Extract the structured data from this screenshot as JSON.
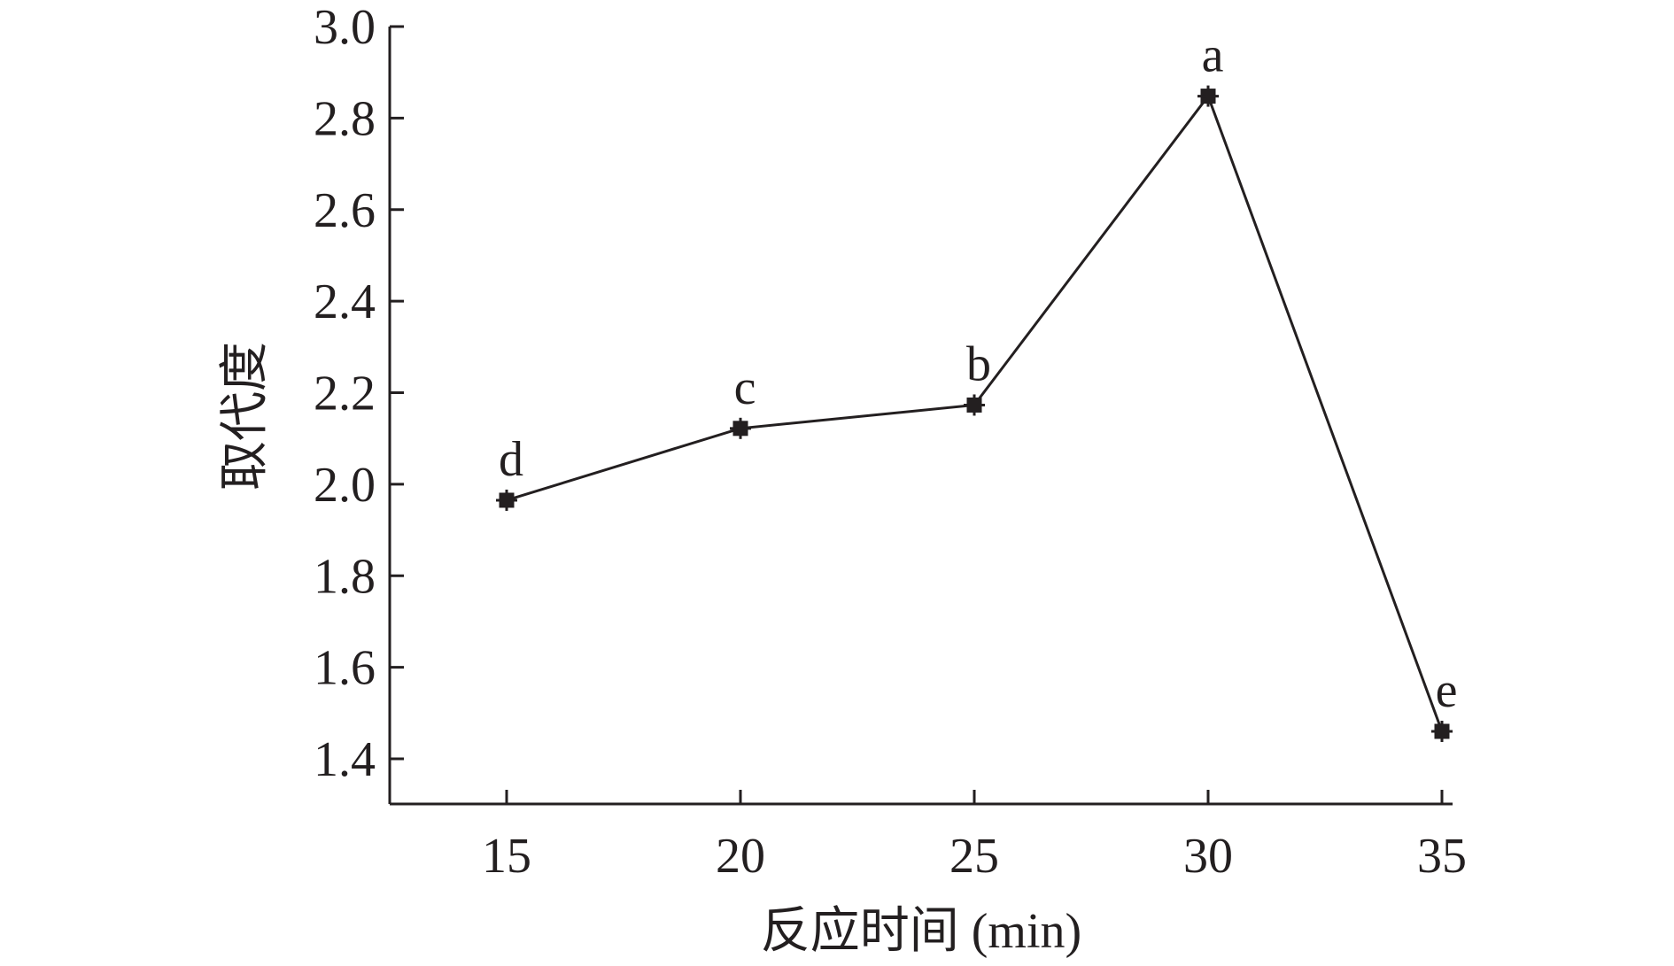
{
  "chart_data": {
    "type": "line",
    "xlabel": "反应时间 (min)",
    "ylabel": "取代度",
    "x": [
      15,
      20,
      25,
      30,
      35
    ],
    "x_ticks": [
      "15",
      "20",
      "25",
      "30",
      "35"
    ],
    "y_ticks": [
      "1.4",
      "1.6",
      "1.8",
      "2.0",
      "2.2",
      "2.4",
      "2.6",
      "2.8",
      "3.0"
    ],
    "ylim": [
      1.3,
      3.0
    ],
    "xlim": [
      12.5,
      35
    ],
    "grid": false,
    "series": [
      {
        "values": [
          1.965,
          2.122,
          2.173,
          2.848,
          1.46
        ],
        "labels": [
          "d",
          "c",
          "b",
          "a",
          "e"
        ],
        "marker": "square-star",
        "color": "#231f20"
      }
    ]
  }
}
